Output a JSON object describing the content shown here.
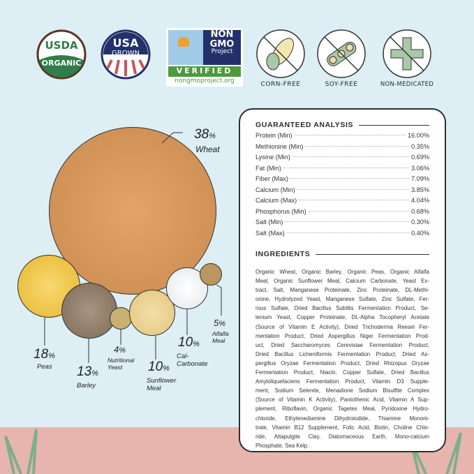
{
  "badges": {
    "usda": {
      "line1": "USDA",
      "line2": "ORGANIC"
    },
    "usa": {
      "line1": "USA",
      "line2": "GROWN"
    },
    "nongmo": {
      "line1": "NON",
      "line2": "GMO",
      "line3": "Project",
      "verified": "VERIFIED",
      "url": "nongmoproject.org"
    },
    "corn_free": "CORN-FREE",
    "soy_free": "SOY-FREE",
    "non_medicated": "NON-MEDICATED"
  },
  "composition": [
    {
      "pct": "38",
      "unit": "%",
      "label": "Wheat"
    },
    {
      "pct": "18",
      "unit": "%",
      "label": "Peas"
    },
    {
      "pct": "13",
      "unit": "%",
      "label": "Barley"
    },
    {
      "pct": "4",
      "unit": "%",
      "label": "Nutritional Yeast"
    },
    {
      "pct": "10",
      "unit": "%",
      "label": "Sunflower Meal"
    },
    {
      "pct": "10",
      "unit": "%",
      "label": "Cal-Carbonate"
    },
    {
      "pct": "5",
      "unit": "%",
      "label": "Alfalfa Meal"
    }
  ],
  "analysis": {
    "title": "GUARANTEED ANALYSIS",
    "rows": [
      {
        "name": "Protein (Min)",
        "value": "16.00%"
      },
      {
        "name": "Methionine (Min)",
        "value": "0.35%"
      },
      {
        "name": "Lysine (Min)",
        "value": "0.69%"
      },
      {
        "name": "Fat (Min)",
        "value": "3.06%"
      },
      {
        "name": "Fiber (Max)",
        "value": "7.09%"
      },
      {
        "name": "Calcium (Min)",
        "value": "3.85%"
      },
      {
        "name": "Calcium (Max)",
        "value": "4.04%"
      },
      {
        "name": "Phosphorus (Min)",
        "value": "0.68%"
      },
      {
        "name": "Salt (Min)",
        "value": "0.30%"
      },
      {
        "name": "Salt (Max)",
        "value": "0.40%"
      }
    ]
  },
  "ingredients": {
    "title": "INGREDIENTS",
    "lines": [
      "Organic Wheat, Organic Barley, Organic Peas, Organic Alfalfa",
      "Meal, Organic Sunflower Meal, Calcium Carbonate, Yeast Ex-",
      "tract, Salt, Manganese Proteinate, Zinc Proteinate, DL-Methi-",
      "onine, Hydrolyzed Yeast, Manganese Sulfate, Zinc Sulfate, Fer-",
      "rous Sulfate, Dried Bacillus Subtilis Fermentation Product, Se-",
      "lenium Yeast, Copper Proteinate, DL-Alpha Tocopheryl Acetate",
      "(Source of Vitamin E Activity), Dried Trichoderma Reesei Fer-",
      "mentation Product, Dried Aspergillus Niger Fermentation Prod-",
      "uct, Dried Saccharomyces Cerevisiae Fermentation Product,",
      "Dried Bacillus Licheniformis Fermentation Product, Dried As-",
      "pergillus Oryzae Fermentation Product, Dried Rhizopus Oryzae",
      "Fermentation Product, Niacin, Copper Sulfate, Dried Bacillus",
      "Amyloliquefaciens Fermentation Product, Vitamin D3 Supple-",
      "ment, Sodium Selenite, Menadione Sodium Bisulfite Complex",
      "(Source of Vitamin K Activity), Pantothenic Acid, Vitamin A Sup-",
      "plement, Riboflavin, Organic Tagetes Meal, Pyridoxine Hydro-",
      "chloride, Ethylenediamine Dihydroiodide, Thiamine Mononi-",
      "trate, Vitamin B12 Supplement, Folic Acid, Biotin, Choline Chlo-",
      "ride, Attapulgite Clay, Diatomaceous Earth, Mono-calcium",
      "Phosphate, Sea Kelp."
    ]
  },
  "colors": {
    "background": "#ddeef4",
    "ground": "#e7b5ae",
    "usda_green": "#2e7d4a",
    "usa_navy": "#23306b",
    "nongmo_green": "#4c9a3c",
    "icon_green": "#a8c8a8"
  }
}
